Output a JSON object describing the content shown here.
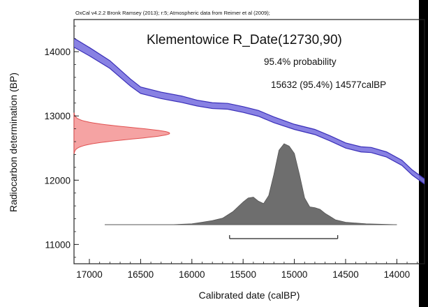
{
  "chart_data": {
    "type": "area",
    "header": "OxCal v4.2.2 Bronk Ramsey (2013); r:5; Atmospheric data from Reimer et al (2009);",
    "title": "Klementowice R_Date(12730,90)",
    "probability_label": "95.4% probability",
    "range_label": "15632 (95.4%) 14577calBP",
    "xlabel": "Calibrated date (calBP)",
    "ylabel": "Radiocarbon determination (BP)",
    "xlim": [
      17150,
      13730
    ],
    "ylim": [
      10700,
      14500
    ],
    "x_ticks": [
      17000,
      16500,
      16000,
      15500,
      15000,
      14500,
      14000
    ],
    "y_ticks": [
      11000,
      12000,
      13000,
      14000
    ],
    "calibration_curve": {
      "name": "Atmospheric data",
      "x": [
        17150,
        17000,
        16800,
        16600,
        16500,
        16300,
        16100,
        15950,
        15800,
        15650,
        15500,
        15350,
        15200,
        15000,
        14800,
        14650,
        14500,
        14350,
        14250,
        14100,
        13950,
        13850,
        13730
      ],
      "mean": [
        14140,
        14000,
        13800,
        13520,
        13400,
        13320,
        13260,
        13200,
        13160,
        13150,
        13100,
        13040,
        12940,
        12830,
        12750,
        12650,
        12540,
        12480,
        12470,
        12400,
        12270,
        12120,
        11980
      ],
      "sigma": [
        70,
        65,
        60,
        55,
        50,
        50,
        50,
        45,
        45,
        45,
        45,
        45,
        45,
        40,
        40,
        40,
        40,
        40,
        40,
        40,
        40,
        40,
        40
      ]
    },
    "radiocarbon_date": {
      "mean": 12730,
      "sigma": 90,
      "color": "#f5a3a3",
      "edge_color": "#e05050"
    },
    "posterior": {
      "color": "#6e6e6e",
      "x": [
        16850,
        16200,
        16000,
        15900,
        15800,
        15700,
        15600,
        15500,
        15450,
        15400,
        15350,
        15300,
        15250,
        15200,
        15150,
        15100,
        15050,
        15000,
        14950,
        14900,
        14850,
        14800,
        14750,
        14700,
        14650,
        14600,
        14500,
        14400,
        14300,
        14000
      ],
      "density": [
        0,
        0,
        0.01,
        0.03,
        0.05,
        0.08,
        0.16,
        0.28,
        0.33,
        0.34,
        0.29,
        0.26,
        0.36,
        0.62,
        0.92,
        1.0,
        0.97,
        0.88,
        0.62,
        0.33,
        0.22,
        0.21,
        0.19,
        0.14,
        0.1,
        0.06,
        0.03,
        0.02,
        0.01,
        0
      ]
    },
    "hpd_range": [
      15632,
      14577
    ],
    "curve_color": "#7b73e0",
    "curve_edge_color": "#3a2fb8",
    "grid": false
  }
}
